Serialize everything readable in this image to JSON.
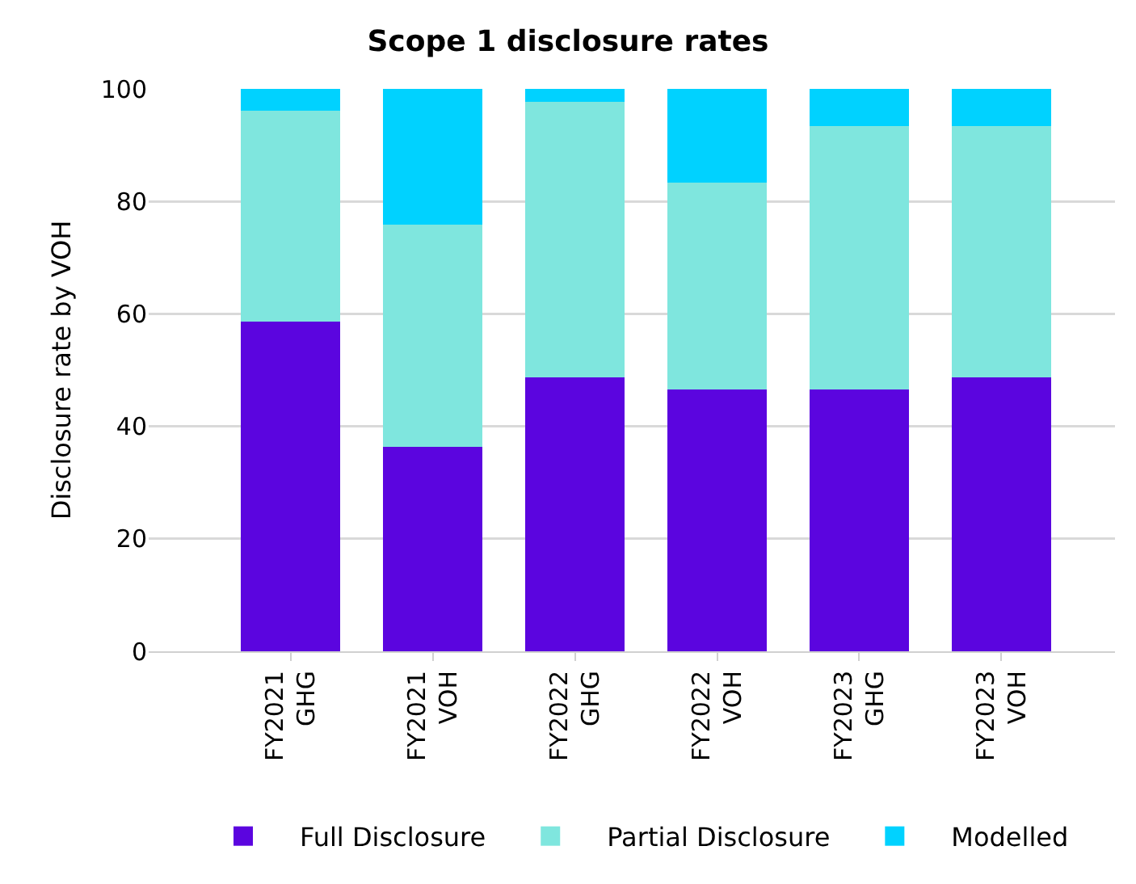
{
  "chart_data": {
    "type": "bar",
    "title": "Scope 1 disclosure rates",
    "ylabel": "Disclosure rate by VOH",
    "stacked": true,
    "categories": [
      "FY2021 GHG",
      "FY2021 VOH",
      "FY2022 GHG",
      "FY2022 VOH",
      "FY2023 GHG",
      "FY2023 VOH"
    ],
    "series": [
      {
        "name": "Full Disclosure",
        "color": "#5b05df",
        "values": [
          58.6,
          36.3,
          48.7,
          46.5,
          46.5,
          48.7
        ]
      },
      {
        "name": "Partial Disclosure",
        "color": "#7fe6de",
        "values": [
          37.5,
          39.5,
          49.0,
          36.8,
          46.9,
          44.7
        ]
      },
      {
        "name": "Modelled",
        "color": "#00d2ff",
        "values": [
          3.9,
          24.2,
          2.3,
          16.7,
          6.6,
          6.6
        ]
      }
    ],
    "ylim": [
      0,
      100
    ],
    "yticks": [
      0,
      20,
      40,
      60,
      80,
      100
    ],
    "grid": "y",
    "legend": "bottom"
  }
}
